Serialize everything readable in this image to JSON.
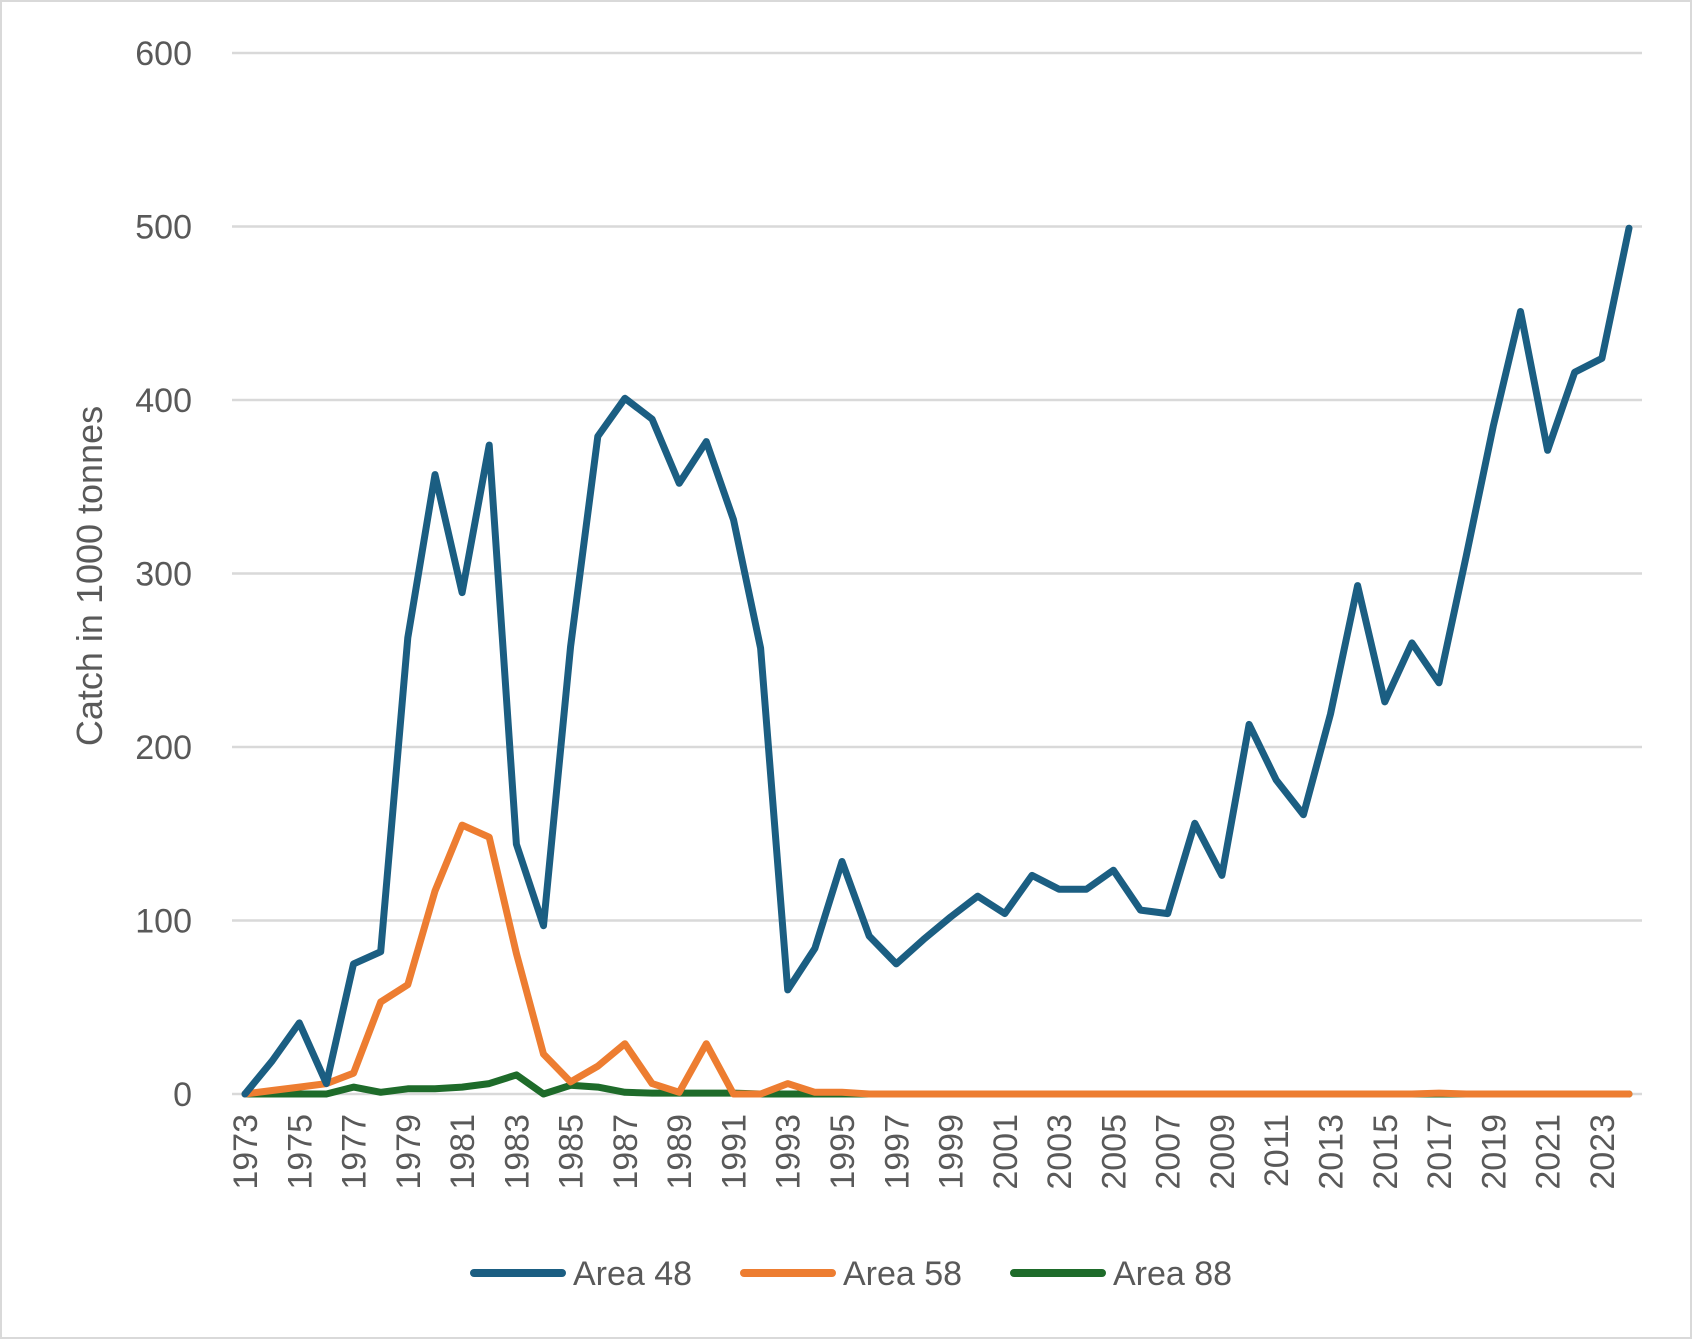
{
  "chart_data": {
    "type": "line",
    "title": "",
    "xlabel": "",
    "ylabel": "Catch in 1000 tonnes",
    "ylim": [
      0,
      600
    ],
    "yticks": [
      0,
      100,
      200,
      300,
      400,
      500,
      600
    ],
    "x": [
      1973,
      1974,
      1975,
      1976,
      1977,
      1978,
      1979,
      1980,
      1981,
      1982,
      1983,
      1984,
      1985,
      1986,
      1987,
      1988,
      1989,
      1990,
      1991,
      1992,
      1993,
      1994,
      1995,
      1996,
      1997,
      1998,
      1999,
      2000,
      2001,
      2002,
      2003,
      2004,
      2005,
      2006,
      2007,
      2008,
      2009,
      2010,
      2011,
      2012,
      2013,
      2014,
      2015,
      2016,
      2017,
      2018,
      2019,
      2020,
      2021,
      2022,
      2023,
      2024
    ],
    "xtick_labels": [
      "1973",
      "1975",
      "1977",
      "1979",
      "1981",
      "1983",
      "1985",
      "1987",
      "1989",
      "1991",
      "1993",
      "1995",
      "1997",
      "1999",
      "2001",
      "2003",
      "2005",
      "2007",
      "2009",
      "2011",
      "2013",
      "2015",
      "2017",
      "2019",
      "2021",
      "2023"
    ],
    "grid": true,
    "legend_position": "bottom",
    "series": [
      {
        "name": "Area 48",
        "color": "#1b5e82",
        "values": [
          0,
          19,
          41,
          6,
          75,
          82,
          263,
          357,
          289,
          374,
          144,
          97,
          258,
          379,
          401,
          389,
          352,
          376,
          331,
          257,
          60,
          84,
          134,
          91,
          75,
          89,
          102,
          114,
          104,
          126,
          118,
          118,
          129,
          106,
          104,
          156,
          126,
          213,
          181,
          161,
          219,
          293,
          226,
          260,
          237,
          310,
          385,
          451,
          371,
          416,
          424,
          499
        ]
      },
      {
        "name": "Area 58",
        "color": "#ed7d31",
        "values": [
          0,
          2,
          4,
          6,
          12,
          53,
          63,
          117,
          155,
          148,
          81,
          23,
          7,
          16,
          29,
          6,
          1,
          29,
          0,
          0,
          6,
          1,
          1,
          0,
          0,
          0,
          0,
          0,
          0,
          0,
          0,
          0,
          0,
          0,
          0,
          0,
          0,
          0,
          0,
          0,
          0,
          0,
          0,
          0,
          0.5,
          0,
          0,
          0,
          0,
          0,
          0,
          0
        ]
      },
      {
        "name": "Area 88",
        "color": "#1e6b2a",
        "values": [
          0,
          0,
          0,
          0,
          4,
          1,
          3,
          3,
          4,
          6,
          11,
          0,
          5,
          4,
          1,
          0.5,
          0.5,
          0.5,
          0.5,
          0,
          0,
          0,
          0,
          0,
          0,
          0,
          0,
          0,
          0,
          0,
          0,
          0,
          0,
          0,
          0,
          0,
          0,
          0,
          0,
          0,
          0,
          0,
          0,
          0,
          0,
          0,
          0,
          0,
          0,
          0,
          0,
          0
        ]
      }
    ]
  }
}
